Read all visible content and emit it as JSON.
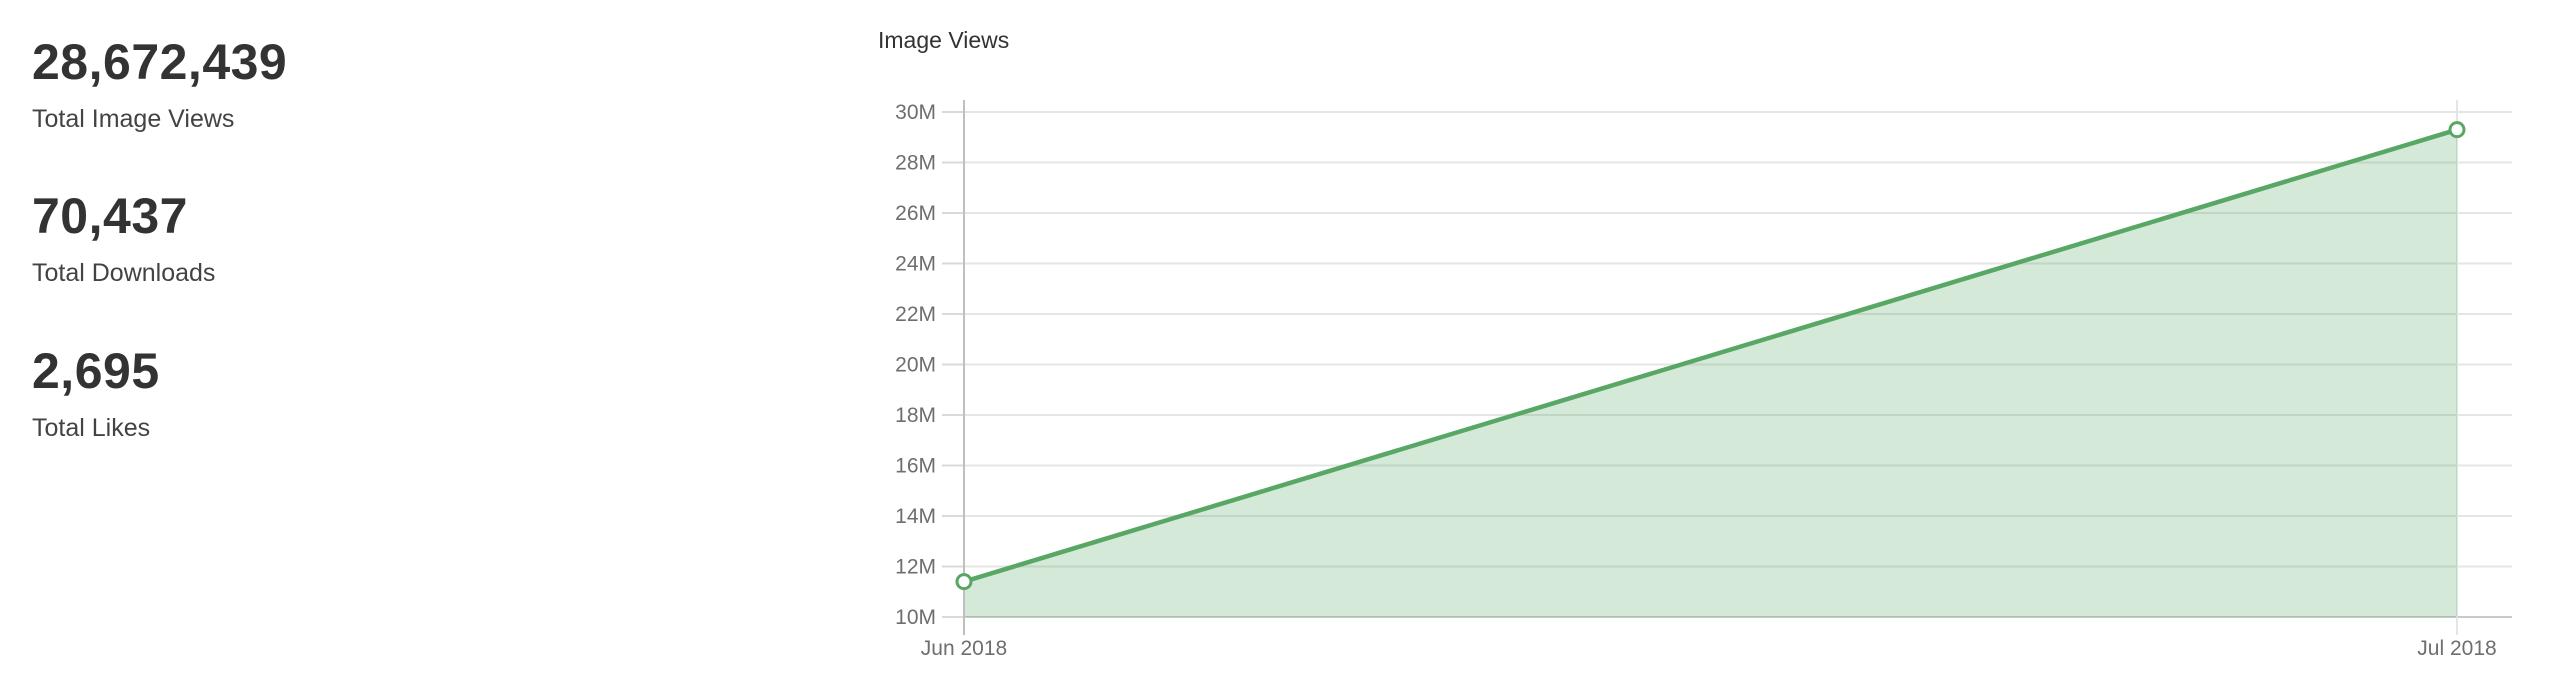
{
  "stats": [
    {
      "value": "28,672,439",
      "label": "Total Image Views"
    },
    {
      "value": "70,437",
      "label": "Total Downloads"
    },
    {
      "value": "2,695",
      "label": "Total Likes"
    }
  ],
  "chart": {
    "title": "Image Views"
  },
  "chart_data": {
    "type": "area",
    "title": "Image Views",
    "categories": [
      "Jun 2018",
      "Jul 2018"
    ],
    "series": [
      {
        "name": "Image Views",
        "values": [
          11400000,
          29300000
        ]
      }
    ],
    "ylim": [
      10000000,
      30000000
    ],
    "y_tick_step": 2000000,
    "y_tick_labels": [
      "10M",
      "12M",
      "14M",
      "16M",
      "18M",
      "20M",
      "22M",
      "24M",
      "26M",
      "28M",
      "30M"
    ],
    "xlabel": "",
    "ylabel": "",
    "grid": "on",
    "legend": "none",
    "colors": {
      "line": "#58a765",
      "area_fill": "rgba(88, 167, 101, 0.25)",
      "marker_fill": "#ffffff",
      "marker_stroke": "#58a765",
      "gridline": "#e5e5e5",
      "axis_line": "#bfbfbf",
      "bottom_border": "#c9c9c9",
      "tick_nub": "#d9d9d9",
      "tick_text": "#6e6e6e"
    }
  }
}
